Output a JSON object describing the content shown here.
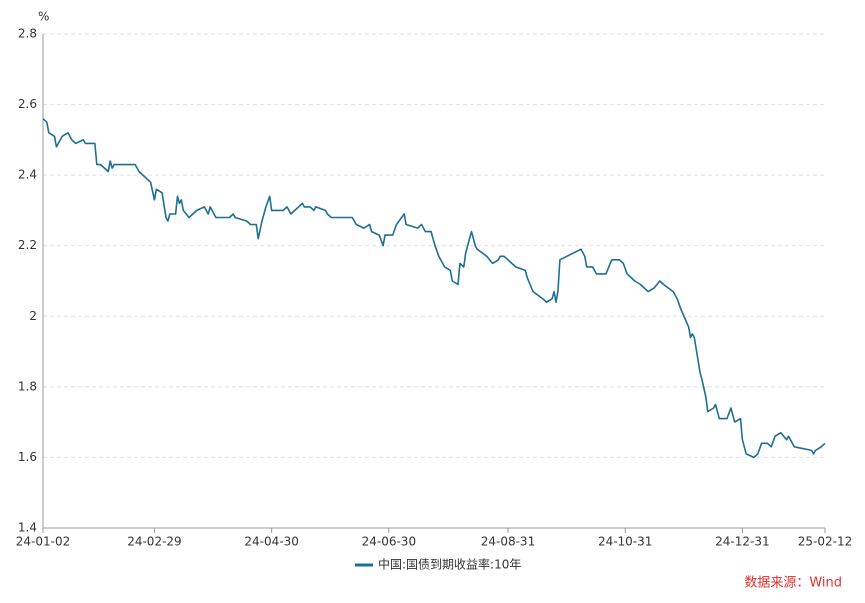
{
  "chart_data": {
    "type": "line",
    "y_label": "%",
    "source": "数据来源：Wind",
    "ylim": [
      1.4,
      2.8
    ],
    "yticks": [
      1.4,
      1.6,
      1.8,
      2,
      2.2,
      2.4,
      2.6,
      2.8
    ],
    "xlim": [
      "24-01-02",
      "25-02-12"
    ],
    "xticks": [
      "24-01-02",
      "24-02-29",
      "24-04-30",
      "24-06-30",
      "24-08-31",
      "24-10-31",
      "24-12-31",
      "25-02-12"
    ],
    "grid": true,
    "legend": "bottom",
    "x": [
      "24-01-02",
      "24-01-04",
      "24-01-05",
      "24-01-08",
      "24-01-09",
      "24-01-11",
      "24-01-12",
      "24-01-15",
      "24-01-17",
      "24-01-19",
      "24-01-23",
      "24-01-24",
      "24-01-29",
      "24-01-30",
      "24-02-01",
      "24-02-05",
      "24-02-06",
      "24-02-07",
      "24-02-08",
      "24-02-19",
      "24-02-21",
      "24-02-23",
      "24-02-27",
      "24-02-29",
      "24-03-01",
      "24-03-04",
      "24-03-06",
      "24-03-07",
      "24-03-08",
      "24-03-11",
      "24-03-12",
      "24-03-13",
      "24-03-14",
      "24-03-15",
      "24-03-18",
      "24-03-22",
      "24-03-26",
      "24-03-28",
      "24-03-29",
      "24-04-01",
      "24-04-08",
      "24-04-10",
      "24-04-11",
      "24-04-17",
      "24-04-19",
      "24-04-22",
      "24-04-23",
      "24-04-25",
      "24-04-27",
      "24-04-29",
      "24-04-30",
      "24-05-06",
      "24-05-08",
      "24-05-10",
      "24-05-16",
      "24-05-17",
      "24-05-20",
      "24-05-22",
      "24-05-23",
      "24-05-28",
      "24-05-29",
      "24-05-31",
      "24-06-06",
      "24-06-11",
      "24-06-13",
      "24-06-17",
      "24-06-20",
      "24-06-21",
      "24-06-25",
      "24-06-27",
      "24-06-28",
      "24-07-02",
      "24-07-04",
      "24-07-08",
      "24-07-09",
      "24-07-15",
      "24-07-17",
      "24-07-19",
      "24-07-22",
      "24-07-24",
      "24-07-26",
      "24-07-29",
      "24-08-01",
      "24-08-02",
      "24-08-05",
      "24-08-06",
      "24-08-08",
      "24-08-09",
      "24-08-12",
      "24-08-14",
      "24-08-15",
      "24-08-20",
      "24-08-23",
      "24-08-26",
      "24-08-27",
      "24-08-29",
      "24-09-02",
      "24-09-04",
      "24-09-09",
      "24-09-10",
      "24-09-13",
      "24-09-18",
      "24-09-20",
      "24-09-23",
      "24-09-24",
      "24-09-25",
      "24-09-26",
      "24-09-27",
      "24-10-08",
      "24-10-10",
      "24-10-11",
      "24-10-14",
      "24-10-16",
      "24-10-21",
      "24-10-24",
      "24-10-28",
      "24-10-30",
      "24-11-01",
      "24-11-05",
      "24-11-08",
      "24-11-12",
      "24-11-15",
      "24-11-18",
      "24-11-20",
      "24-11-25",
      "24-11-27",
      "24-11-29",
      "24-12-03",
      "24-12-04",
      "24-12-05",
      "24-12-06",
      "24-12-09",
      "24-12-10",
      "24-12-12",
      "24-12-13",
      "24-12-16",
      "24-12-17",
      "24-12-19",
      "24-12-23",
      "24-12-25",
      "24-12-27",
      "24-12-30",
      "24-12-31",
      "25-01-02",
      "25-01-06",
      "25-01-08",
      "25-01-10",
      "25-01-13",
      "25-01-15",
      "25-01-17",
      "25-01-20",
      "25-01-23",
      "25-01-24",
      "25-01-27",
      "25-02-05",
      "25-02-06",
      "25-02-07",
      "25-02-10",
      "25-02-12"
    ],
    "series": [
      {
        "name": "中国:国债到期收益率:10年",
        "color": "#1f6f94",
        "values": [
          2.56,
          2.55,
          2.52,
          2.51,
          2.48,
          2.5,
          2.51,
          2.52,
          2.5,
          2.49,
          2.5,
          2.49,
          2.49,
          2.43,
          2.43,
          2.41,
          2.44,
          2.42,
          2.43,
          2.43,
          2.41,
          2.4,
          2.38,
          2.33,
          2.36,
          2.35,
          2.28,
          2.27,
          2.29,
          2.29,
          2.34,
          2.32,
          2.33,
          2.3,
          2.28,
          2.3,
          2.31,
          2.29,
          2.31,
          2.28,
          2.28,
          2.29,
          2.28,
          2.27,
          2.26,
          2.26,
          2.22,
          2.27,
          2.31,
          2.34,
          2.3,
          2.3,
          2.31,
          2.29,
          2.32,
          2.31,
          2.31,
          2.3,
          2.31,
          2.3,
          2.29,
          2.28,
          2.28,
          2.28,
          2.26,
          2.25,
          2.26,
          2.24,
          2.23,
          2.2,
          2.23,
          2.23,
          2.26,
          2.29,
          2.26,
          2.25,
          2.26,
          2.24,
          2.24,
          2.2,
          2.17,
          2.14,
          2.13,
          2.1,
          2.09,
          2.15,
          2.14,
          2.18,
          2.24,
          2.2,
          2.19,
          2.17,
          2.15,
          2.16,
          2.17,
          2.17,
          2.15,
          2.14,
          2.13,
          2.11,
          2.07,
          2.05,
          2.04,
          2.05,
          2.07,
          2.04,
          2.07,
          2.16,
          2.19,
          2.17,
          2.14,
          2.14,
          2.12,
          2.12,
          2.16,
          2.16,
          2.15,
          2.12,
          2.1,
          2.09,
          2.07,
          2.08,
          2.1,
          2.09,
          2.07,
          2.05,
          2.02,
          1.97,
          1.94,
          1.95,
          1.94,
          1.84,
          1.82,
          1.77,
          1.73,
          1.74,
          1.75,
          1.71,
          1.71,
          1.74,
          1.7,
          1.71,
          1.65,
          1.61,
          1.6,
          1.61,
          1.64,
          1.64,
          1.63,
          1.66,
          1.67,
          1.65,
          1.66,
          1.63,
          1.62,
          1.61,
          1.62,
          1.63,
          1.64
        ]
      }
    ]
  }
}
